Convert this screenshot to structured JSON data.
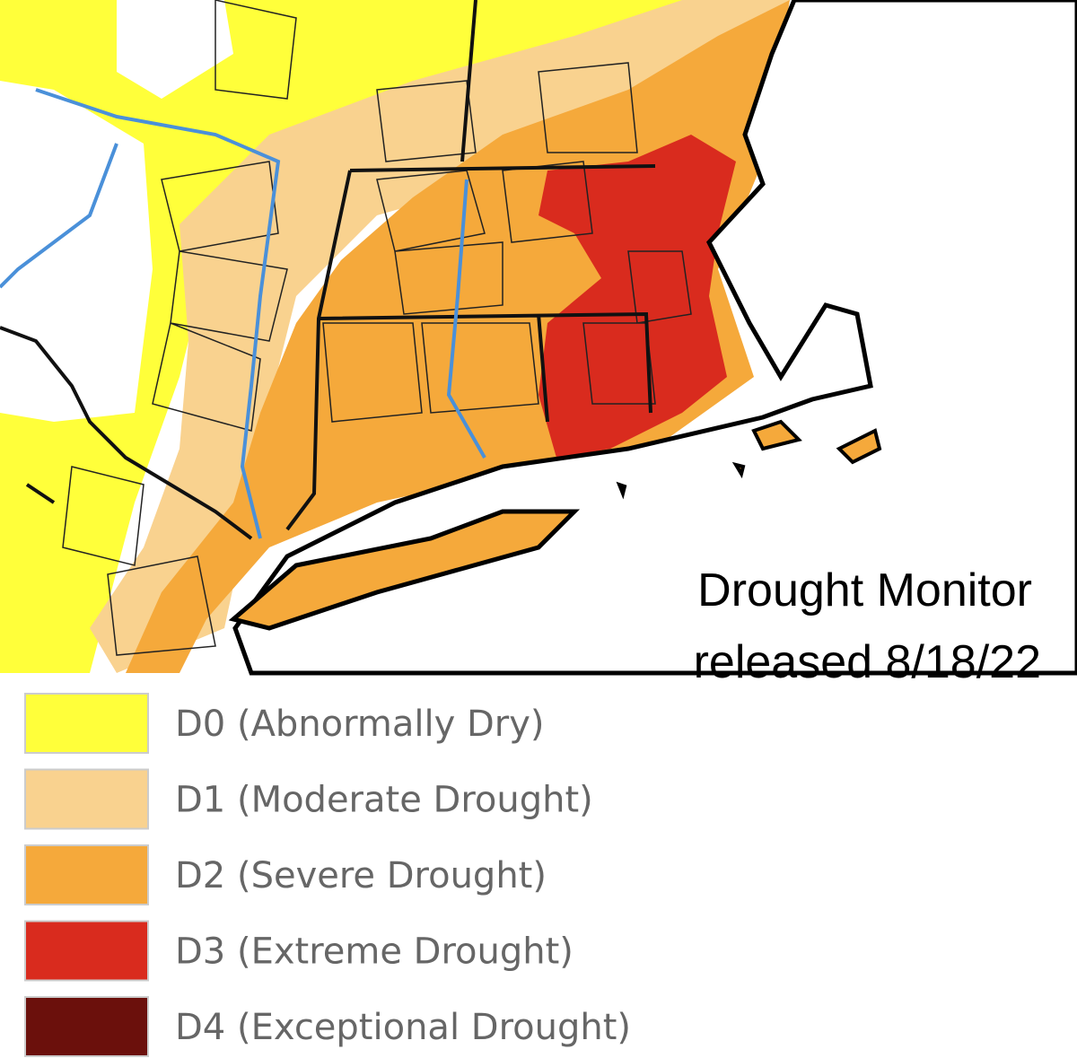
{
  "title": [
    "Drought Monitor",
    "released 8/18/22"
  ],
  "legend": [
    {
      "label": "D0 (Abnormally Dry)",
      "color": "#ffff3a"
    },
    {
      "label": "D1 (Moderate Drought)",
      "color": "#f9d28f"
    },
    {
      "label": "D2 (Severe Drought)",
      "color": "#f5a93b"
    },
    {
      "label": "D3 (Extreme Drought)",
      "color": "#d92b1e"
    },
    {
      "label": "D4 (Exceptional Drought)",
      "color": "#6b100c"
    }
  ]
}
